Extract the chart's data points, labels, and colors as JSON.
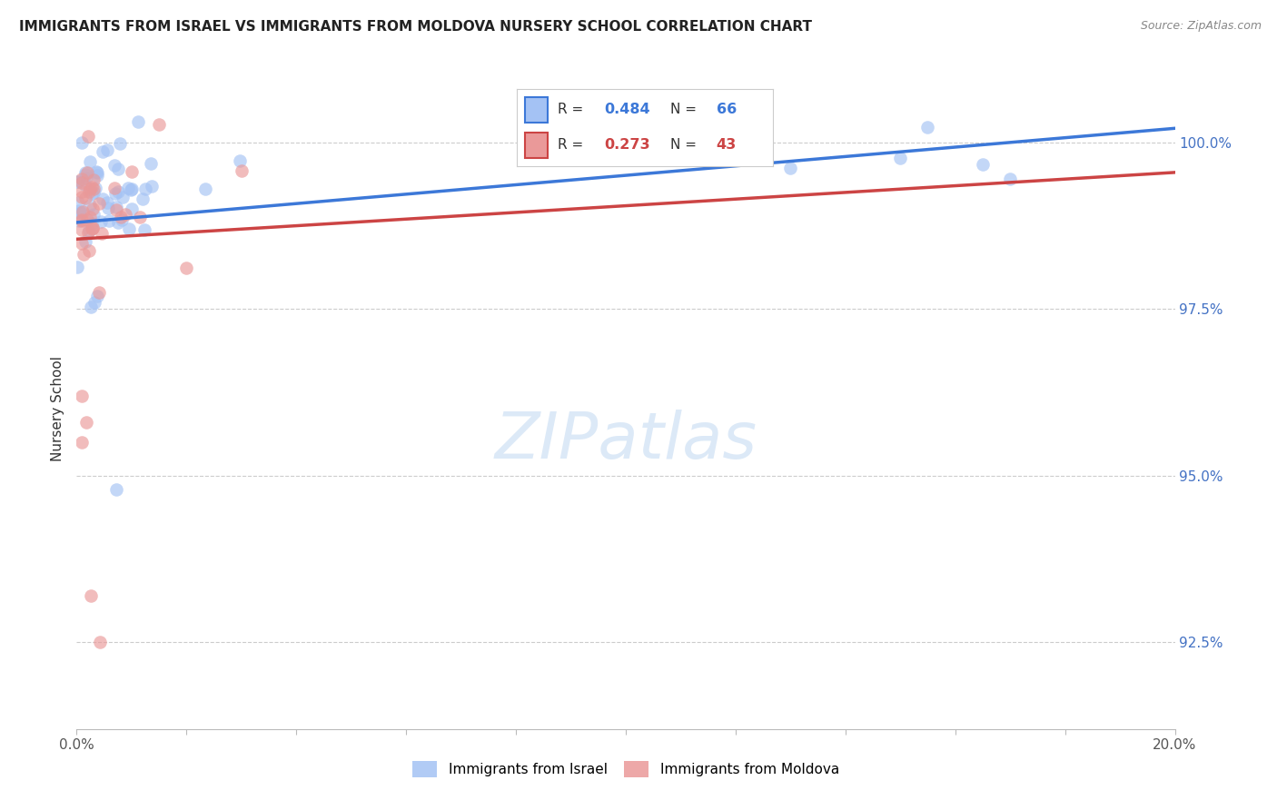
{
  "title": "IMMIGRANTS FROM ISRAEL VS IMMIGRANTS FROM MOLDOVA NURSERY SCHOOL CORRELATION CHART",
  "source": "Source: ZipAtlas.com",
  "ylabel": "Nursery School",
  "yticks": [
    92.5,
    95.0,
    97.5,
    100.0
  ],
  "ytick_labels": [
    "92.5%",
    "95.0%",
    "97.5%",
    "100.0%"
  ],
  "xmin": 0.0,
  "xmax": 0.2,
  "ymin": 91.2,
  "ymax": 100.8,
  "israel_R": 0.484,
  "israel_N": 66,
  "moldova_R": 0.273,
  "moldova_N": 43,
  "israel_color": "#a4c2f4",
  "moldova_color": "#ea9999",
  "israel_line_color": "#3c78d8",
  "moldova_line_color": "#cc4444",
  "background": "#ffffff",
  "grid_color": "#cccccc",
  "watermark_color": "#dce9f7"
}
